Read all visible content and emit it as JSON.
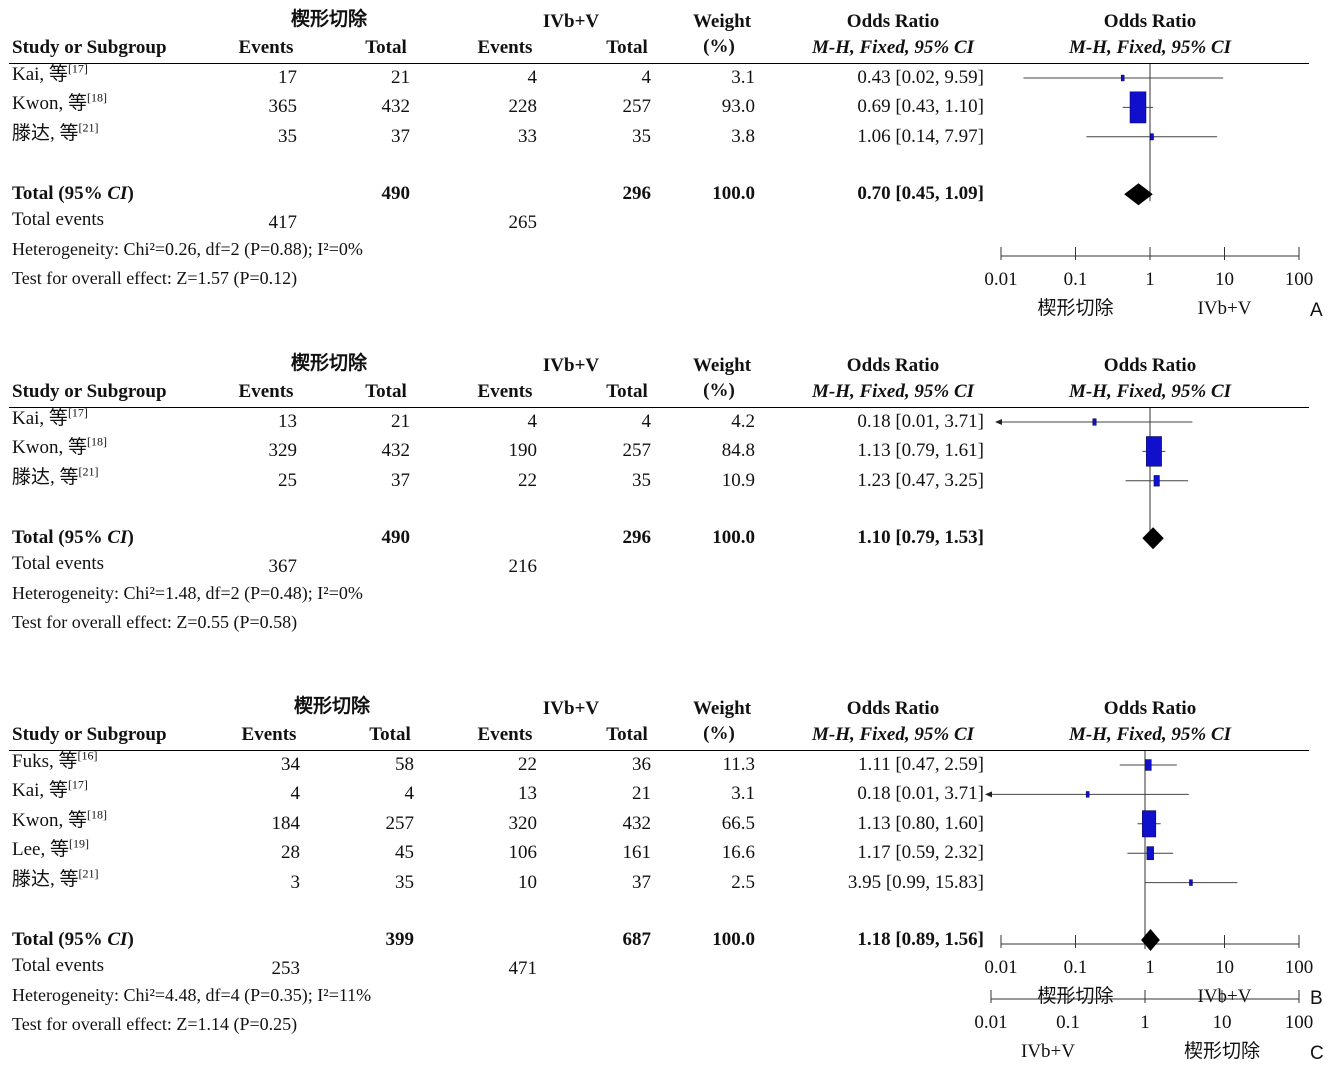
{
  "chart_data": [
    {
      "type": "forest",
      "panel_label": "A",
      "headers": {
        "group1": "楔形切除",
        "group2": "IVb+V",
        "study_col": "Study or Subgroup",
        "events": "Events",
        "total": "Total",
        "weight": "Weight",
        "weight_unit": "(%)",
        "or_title": "Odds Ratio",
        "or_method": "M-H, Fixed, 95% CI",
        "plot_title": "Odds Ratio",
        "plot_method": "M-H, Fixed, 95% CI"
      },
      "studies": [
        {
          "name": "Kai, 等",
          "ref": "[17]",
          "e1": "17",
          "n1": "21",
          "e2": "4",
          "n2": "4",
          "weight": "3.1",
          "ci_text": "0.43 [0.02, 9.59]",
          "or": 0.43,
          "lo": 0.02,
          "hi": 9.59,
          "w": 3.1
        },
        {
          "name": "Kwon, 等",
          "ref": "[18]",
          "e1": "365",
          "n1": "432",
          "e2": "228",
          "n2": "257",
          "weight": "93.0",
          "ci_text": "0.69 [0.43, 1.10]",
          "or": 0.69,
          "lo": 0.43,
          "hi": 1.1,
          "w": 93.0
        },
        {
          "name": "滕达, 等",
          "ref": "[21]",
          "e1": "35",
          "n1": "37",
          "e2": "33",
          "n2": "35",
          "weight": "3.8",
          "ci_text": "1.06 [0.14, 7.97]",
          "or": 1.06,
          "lo": 0.14,
          "hi": 7.97,
          "w": 3.8
        }
      ],
      "total": {
        "label": "Total (95% ",
        "label_ci": "CI",
        "label_end": ")",
        "n1": "490",
        "n2": "296",
        "weight": "100.0",
        "ci_text": "0.70 [0.45, 1.09]",
        "or": 0.7,
        "lo": 0.45,
        "hi": 1.09
      },
      "total_events": {
        "label": "Total events",
        "e1": "417",
        "e2": "265"
      },
      "heterogeneity": "Heterogeneity: Chi²=0.26, df=2 (P=0.88); I²=0%",
      "overall": "Test for overall effect: Z=1.57 (P=0.12)",
      "axis": {
        "scale": "log",
        "range": [
          0.01,
          100
        ],
        "ticks": [
          "0.01",
          "0.1",
          "1",
          "10",
          "100"
        ],
        "favours_left": "楔形切除",
        "favours_right": "IVb+V"
      }
    },
    {
      "type": "forest",
      "panel_label": "B",
      "headers": {
        "group1": "楔形切除",
        "group2": "IVb+V",
        "study_col": "Study or Subgroup",
        "events": "Events",
        "total": "Total",
        "weight": "Weight",
        "weight_unit": "(%)",
        "or_title": "Odds Ratio",
        "or_method": "M-H, Fixed, 95% CI",
        "plot_title": "Odds Ratio",
        "plot_method": "M-H, Fixed, 95% CI"
      },
      "studies": [
        {
          "name": "Kai, 等",
          "ref": "[17]",
          "e1": "13",
          "n1": "21",
          "e2": "4",
          "n2": "4",
          "weight": "4.2",
          "ci_text": "0.18 [0.01, 3.71]",
          "or": 0.18,
          "lo": 0.01,
          "hi": 3.71,
          "w": 4.2
        },
        {
          "name": "Kwon, 等",
          "ref": "[18]",
          "e1": "329",
          "n1": "432",
          "e2": "190",
          "n2": "257",
          "weight": "84.8",
          "ci_text": "1.13 [0.79, 1.61]",
          "or": 1.13,
          "lo": 0.79,
          "hi": 1.61,
          "w": 84.8
        },
        {
          "name": "滕达, 等",
          "ref": "[21]",
          "e1": "25",
          "n1": "37",
          "e2": "22",
          "n2": "35",
          "weight": "10.9",
          "ci_text": "1.23 [0.47, 3.25]",
          "or": 1.23,
          "lo": 0.47,
          "hi": 3.25,
          "w": 10.9
        }
      ],
      "total": {
        "label": "Total (95% ",
        "label_ci": "CI",
        "label_end": ")",
        "n1": "490",
        "n2": "296",
        "weight": "100.0",
        "ci_text": "1.10 [0.79, 1.53]",
        "or": 1.1,
        "lo": 0.79,
        "hi": 1.53
      },
      "total_events": {
        "label": "Total events",
        "e1": "367",
        "e2": "216"
      },
      "heterogeneity": "Heterogeneity: Chi²=1.48, df=2 (P=0.48); I²=0%",
      "overall": "Test for overall effect: Z=0.55 (P=0.58)",
      "axis": {
        "scale": "log",
        "range": [
          0.01,
          100
        ],
        "ticks": [
          "0.01",
          "0.1",
          "1",
          "10",
          "100"
        ],
        "favours_left": "楔形切除",
        "favours_right": "IVb+V"
      }
    },
    {
      "type": "forest",
      "panel_label": "C",
      "headers": {
        "group1": "楔形切除",
        "group2": "IVb+V",
        "study_col": "Study or Subgroup",
        "events": "Events",
        "total": "Total",
        "weight": "Weight",
        "weight_unit": "(%)",
        "or_title": "Odds Ratio",
        "or_method": "M-H, Fixed, 95% CI",
        "plot_title": "Odds Ratio",
        "plot_method": "M-H, Fixed, 95% CI"
      },
      "studies": [
        {
          "name": "Fuks, 等",
          "ref": "[16]",
          "e1": "34",
          "n1": "58",
          "e2": "22",
          "n2": "36",
          "weight": "11.3",
          "ci_text": "1.11 [0.47, 2.59]",
          "or": 1.11,
          "lo": 0.47,
          "hi": 2.59,
          "w": 11.3
        },
        {
          "name": "Kai, 等",
          "ref": "[17]",
          "e1": "4",
          "n1": "4",
          "e2": "13",
          "n2": "21",
          "weight": "3.1",
          "ci_text": "0.18 [0.01, 3.71]",
          "or": 0.18,
          "lo": 0.01,
          "hi": 3.71,
          "w": 3.1
        },
        {
          "name": "Kwon, 等",
          "ref": "[18]",
          "e1": "184",
          "n1": "257",
          "e2": "320",
          "n2": "432",
          "weight": "66.5",
          "ci_text": "1.13 [0.80, 1.60]",
          "or": 1.13,
          "lo": 0.8,
          "hi": 1.6,
          "w": 66.5
        },
        {
          "name": "Lee, 等",
          "ref": "[19]",
          "e1": "28",
          "n1": "45",
          "e2": "106",
          "n2": "161",
          "weight": "16.6",
          "ci_text": "1.17 [0.59, 2.32]",
          "or": 1.17,
          "lo": 0.59,
          "hi": 2.32,
          "w": 16.6
        },
        {
          "name": "滕达, 等",
          "ref": "[21]",
          "e1": "3",
          "n1": "35",
          "e2": "10",
          "n2": "37",
          "weight": "2.5",
          "ci_text": "3.95 [0.99, 15.83]",
          "or": 3.95,
          "lo": 0.99,
          "hi": 15.83,
          "w": 2.5
        }
      ],
      "total": {
        "label": "Total (95% ",
        "label_ci": "CI",
        "label_end": ")",
        "n1": "399",
        "n2": "687",
        "weight": "100.0",
        "ci_text": "1.18 [0.89, 1.56]",
        "or": 1.18,
        "lo": 0.89,
        "hi": 1.56
      },
      "total_events": {
        "label": "Total events",
        "e1": "253",
        "e2": "471"
      },
      "heterogeneity": "Heterogeneity: Chi²=4.48, df=4 (P=0.35); I²=11%",
      "overall": "Test for overall effect: Z=1.14 (P=0.25)",
      "axis": {
        "scale": "log",
        "range": [
          0.01,
          100
        ],
        "ticks": [
          "0.01",
          "0.1",
          "1",
          "10",
          "100"
        ],
        "favours_left": "IVb+V",
        "favours_right": "楔形切除"
      }
    }
  ]
}
